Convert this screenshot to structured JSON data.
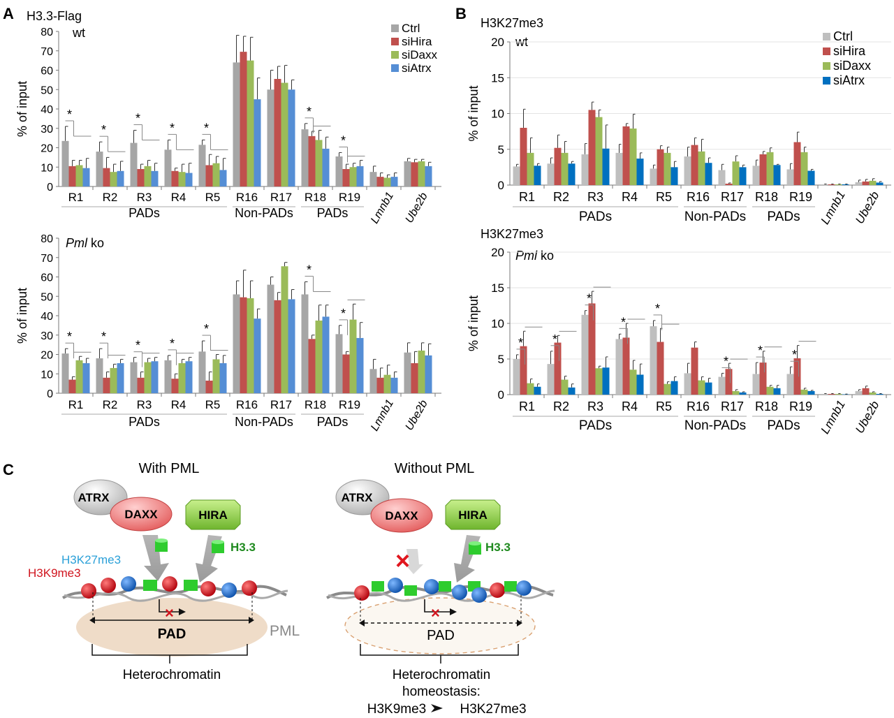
{
  "figure": {
    "panel_labels": {
      "a": "A",
      "b": "B",
      "c": "C"
    }
  },
  "chart_data": [
    {
      "id": "A_wt",
      "type": "bar",
      "title": "H3.3-Flag",
      "subtitle": "wt",
      "ylabel": "% of input",
      "ylim": [
        0,
        80
      ],
      "yticks": [
        0,
        10,
        20,
        30,
        40,
        50,
        60,
        70,
        80
      ],
      "categories": [
        "R1",
        "R2",
        "R3",
        "R4",
        "R5",
        "R16",
        "R17",
        "R18",
        "R19",
        "Lmnb1",
        "Ube2b"
      ],
      "groups": [
        {
          "label": "PADs",
          "from": 0,
          "to": 4
        },
        {
          "label": "Non-PADs",
          "from": 5,
          "to": 6
        },
        {
          "label": "PADs",
          "from": 7,
          "to": 8
        }
      ],
      "legend": "top-right",
      "series": [
        {
          "name": "Ctrl",
          "color": "#a6a6a6",
          "values": [
            23.5,
            18,
            22.5,
            19,
            21.5,
            64,
            50,
            29.5,
            15.5,
            7.5,
            13
          ],
          "errors": [
            7.5,
            5,
            6.5,
            5,
            2.5,
            14,
            10,
            3,
            2,
            3,
            1.5
          ]
        },
        {
          "name": "siHira",
          "color": "#c0504d",
          "values": [
            10.5,
            9.5,
            9,
            8,
            11,
            69.5,
            55.5,
            26,
            9,
            5,
            12.5
          ],
          "errors": [
            3,
            5.5,
            2.5,
            1.5,
            5.5,
            8,
            6.5,
            2.5,
            2.5,
            2,
            1.5
          ]
        },
        {
          "name": "siDaxx",
          "color": "#9bbb59",
          "values": [
            11,
            7.5,
            10.5,
            7.5,
            12,
            65,
            53.5,
            24,
            10,
            4.5,
            13
          ],
          "errors": [
            2.5,
            4,
            3,
            4,
            3.5,
            12,
            9,
            5,
            2,
            1.5,
            1
          ]
        },
        {
          "name": "siAtrx",
          "color": "#558ed5",
          "values": [
            9.5,
            8,
            8,
            7,
            8.5,
            45,
            50,
            19.5,
            10.5,
            5,
            10.5
          ],
          "errors": [
            5,
            5,
            4,
            5,
            6,
            11,
            5,
            6,
            3,
            2,
            2
          ]
        }
      ],
      "significance": [
        {
          "cat": 0,
          "label": "*"
        },
        {
          "cat": 1,
          "label": "*"
        },
        {
          "cat": 2,
          "label": "*"
        },
        {
          "cat": 3,
          "label": "*"
        },
        {
          "cat": 4,
          "label": "*"
        },
        {
          "cat": 7,
          "label": "*"
        },
        {
          "cat": 8,
          "label": "*"
        }
      ]
    },
    {
      "id": "A_ko",
      "type": "bar",
      "title": "",
      "subtitle_italic": "Pml",
      "subtitle": "ko",
      "ylabel": "% of input",
      "ylim": [
        0,
        80
      ],
      "yticks": [
        0,
        10,
        20,
        30,
        40,
        50,
        60,
        70,
        80
      ],
      "categories": [
        "R1",
        "R2",
        "R3",
        "R4",
        "R5",
        "R16",
        "R17",
        "R18",
        "R19",
        "Lmnb1",
        "Ube2b"
      ],
      "groups": [
        {
          "label": "PADs",
          "from": 0,
          "to": 4
        },
        {
          "label": "Non-PADs",
          "from": 5,
          "to": 6
        },
        {
          "label": "PADs",
          "from": 7,
          "to": 8
        }
      ],
      "series": [
        {
          "name": "Ctrl",
          "color": "#a6a6a6",
          "values": [
            20.5,
            18,
            16,
            17,
            21.5,
            51,
            56,
            51,
            30.5,
            12.5,
            21
          ],
          "errors": [
            2.5,
            5,
            2.5,
            2.5,
            5.5,
            7,
            4,
            6.5,
            4.5,
            5,
            5
          ]
        },
        {
          "name": "siHira",
          "color": "#c0504d",
          "values": [
            7,
            8,
            8,
            7.5,
            6.5,
            49.5,
            48,
            28,
            20,
            8,
            15.5
          ],
          "errors": [
            1.5,
            3,
            3,
            2.5,
            4.5,
            14,
            4,
            2,
            1.5,
            5,
            6
          ]
        },
        {
          "name": "siDaxx",
          "color": "#9bbb59",
          "values": [
            17,
            13,
            16,
            15.5,
            17.5,
            49,
            65.5,
            37.5,
            38,
            9.5,
            22
          ],
          "errors": [
            2,
            2,
            2,
            2,
            2.5,
            9,
            2,
            8,
            8,
            5,
            4
          ]
        },
        {
          "name": "siAtrx",
          "color": "#558ed5",
          "values": [
            15.5,
            15.5,
            16.5,
            16.5,
            15.5,
            38.5,
            48.5,
            39.5,
            28.5,
            8,
            19.5
          ],
          "errors": [
            2.5,
            2,
            2,
            2,
            4,
            5,
            5,
            6,
            8,
            3,
            6
          ]
        }
      ],
      "significance": [
        {
          "cat": 0,
          "label": "*"
        },
        {
          "cat": 1,
          "label": "*"
        },
        {
          "cat": 2,
          "label": "*"
        },
        {
          "cat": 3,
          "label": "*"
        },
        {
          "cat": 4,
          "label": "*"
        },
        {
          "cat": 7,
          "label": "*"
        },
        {
          "cat": 8,
          "label": "*"
        }
      ]
    },
    {
      "id": "B_wt",
      "type": "bar",
      "title": "H3K27me3",
      "subtitle": "wt",
      "ylabel": "% of input",
      "ylim": [
        0,
        20
      ],
      "yticks": [
        0,
        5,
        10,
        15,
        20
      ],
      "categories": [
        "R1",
        "R2",
        "R3",
        "R4",
        "R5",
        "R16",
        "R17",
        "R18",
        "R19",
        "Lmnb1",
        "Ube2b"
      ],
      "groups": [
        {
          "label": "PADs",
          "from": 0,
          "to": 4
        },
        {
          "label": "Non-PADs",
          "from": 5,
          "to": 6
        },
        {
          "label": "PADs",
          "from": 7,
          "to": 8
        }
      ],
      "legend": "top-right",
      "series": [
        {
          "name": "Ctrl",
          "color": "#bfbfbf",
          "values": [
            2.6,
            3,
            4.3,
            4.5,
            2.3,
            4,
            2.1,
            2.7,
            2.2,
            0.1,
            0.4
          ],
          "errors": [
            0.3,
            0.8,
            1.5,
            1.2,
            0.5,
            1.3,
            0.8,
            0.8,
            0.8,
            0.05,
            0.3
          ]
        },
        {
          "name": "siHira",
          "color": "#c0504d",
          "values": [
            8,
            5.2,
            10.5,
            8.2,
            5,
            5.6,
            0.2,
            4.3,
            6,
            0.1,
            0.5
          ],
          "errors": [
            2.6,
            1.8,
            1.1,
            0.4,
            0.5,
            1,
            0.1,
            0.4,
            1.4,
            0.05,
            0.3
          ]
        },
        {
          "name": "siDaxx",
          "color": "#9bbb59",
          "values": [
            4.5,
            4.5,
            9.5,
            7.9,
            4.5,
            4.7,
            3.3,
            4.6,
            4.6,
            0.1,
            0.6
          ],
          "errors": [
            2.1,
            1.6,
            1,
            2,
            0.8,
            1.7,
            0.8,
            0.6,
            0.7,
            0.05,
            0.3
          ]
        },
        {
          "name": "siAtrx",
          "color": "#0070c0",
          "values": [
            2.7,
            3,
            5.1,
            3.7,
            2.5,
            3.1,
            2.5,
            2.8,
            2,
            0.1,
            0.35
          ],
          "errors": [
            0.3,
            0.3,
            3.3,
            0.8,
            0.8,
            0.7,
            0.3,
            0.1,
            0.2,
            0.05,
            0.15
          ]
        }
      ],
      "significance": []
    },
    {
      "id": "B_ko",
      "type": "bar",
      "title": "H3K27me3",
      "subtitle_italic": "Pml",
      "subtitle": "ko",
      "ylabel": "% of input",
      "ylim": [
        0,
        20
      ],
      "yticks": [
        0,
        5,
        10,
        15,
        20
      ],
      "categories": [
        "R1",
        "R2",
        "R3",
        "R4",
        "R5",
        "R16",
        "R17",
        "R18",
        "R19",
        "Lmnb1",
        "Ube2b"
      ],
      "groups": [
        {
          "label": "PADs",
          "from": 0,
          "to": 4
        },
        {
          "label": "Non-PADs",
          "from": 5,
          "to": 6
        },
        {
          "label": "PADs",
          "from": 7,
          "to": 8
        }
      ],
      "series": [
        {
          "name": "Ctrl",
          "color": "#bfbfbf",
          "values": [
            5,
            4.3,
            11.2,
            7.8,
            9.6,
            3,
            2.5,
            2.9,
            2.9,
            0.1,
            0.5
          ],
          "errors": [
            0.6,
            1.8,
            0.6,
            0.7,
            0.8,
            1.4,
            0.5,
            1.6,
            1,
            0.05,
            0.2
          ]
        },
        {
          "name": "siHira",
          "color": "#c0504d",
          "values": [
            6.8,
            7.3,
            12.8,
            8,
            7.4,
            6.6,
            3.6,
            4.5,
            5.1,
            0.1,
            0.9
          ],
          "errors": [
            2.1,
            1,
            1.7,
            2,
            1.9,
            0.8,
            0.8,
            1.6,
            1.8,
            0.05,
            0.3
          ]
        },
        {
          "name": "siDaxx",
          "color": "#9bbb59",
          "values": [
            1.6,
            2.1,
            3.7,
            3.5,
            1.5,
            2,
            0.5,
            1.1,
            0.7,
            0.1,
            0.3
          ],
          "errors": [
            0.6,
            0.5,
            0.3,
            1.3,
            0.3,
            0.5,
            0.2,
            0.2,
            0.2,
            0.05,
            0.1
          ]
        },
        {
          "name": "siAtrx",
          "color": "#0070c0",
          "values": [
            1.1,
            1,
            3.8,
            2.8,
            1.9,
            1.7,
            0.3,
            0.9,
            0.5,
            0.05,
            0.1
          ],
          "errors": [
            0.4,
            0.5,
            1.5,
            1.5,
            0.6,
            0.6,
            0.1,
            0.4,
            0.1,
            0.03,
            0.05
          ]
        }
      ],
      "significance": [
        {
          "cat": 0,
          "label": "*"
        },
        {
          "cat": 1,
          "label": "*"
        },
        {
          "cat": 2,
          "label": "*"
        },
        {
          "cat": 3,
          "label": "*"
        },
        {
          "cat": 4,
          "label": "*"
        },
        {
          "cat": 6,
          "label": "*"
        },
        {
          "cat": 7,
          "label": "*"
        },
        {
          "cat": 8,
          "label": "*"
        }
      ]
    }
  ],
  "diagram": {
    "with_pml": {
      "title": "With PML",
      "atrx": "ATRX",
      "daxx": "DAXX",
      "hira": "HIRA",
      "h33": "H3.3",
      "h3k27": "H3K27me3",
      "h3k9": "H3K9me3",
      "pad": "PAD",
      "pml": "PML",
      "bottom": "Heterochromatin"
    },
    "without_pml": {
      "title": "Without PML",
      "atrx": "ATRX",
      "daxx": "DAXX",
      "hira": "HIRA",
      "h33": "H3.3",
      "pad": "PAD",
      "bottom1": "Heterochromatin",
      "bottom2": "homeostasis:",
      "from": "H3K9me3",
      "to": "H3K27me3"
    },
    "colors": {
      "red_nucleosome": "#d0141e",
      "blue_nucleosome": "#1c6fd1",
      "green_h33": "#2ecc2e",
      "daxx": "#e86a6a",
      "hira": "#8ecf4a",
      "atrx": "#c8c8c8",
      "pml_fill": "#efdcc8",
      "h3k27_text": "#2aa0d8",
      "h3k9_text": "#d0141e",
      "h33_text": "#1f8a1f"
    }
  }
}
